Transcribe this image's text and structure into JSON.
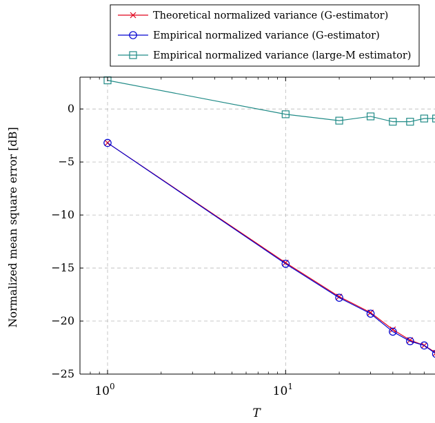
{
  "chart_data": {
    "type": "line",
    "xlabel": "T",
    "ylabel": "Normalized mean square error [dB]",
    "xscale": "log",
    "xlim": [
      0.7,
      69
    ],
    "ylim": [
      -25,
      3
    ],
    "x_ticks": [
      {
        "value": 1,
        "base": "10",
        "exp": "0"
      },
      {
        "value": 10,
        "base": "10",
        "exp": "1"
      }
    ],
    "y_ticks": [
      {
        "value": 0,
        "label": "0"
      },
      {
        "value": -5,
        "label": "−5"
      },
      {
        "value": -10,
        "label": "−10"
      },
      {
        "value": -15,
        "label": "−15"
      },
      {
        "value": -20,
        "label": "−20"
      },
      {
        "value": -25,
        "label": "−25"
      }
    ],
    "grid": true,
    "legend_position": "top-right",
    "series": [
      {
        "name": "Theoretical normalized variance (G-estimator)",
        "color": "#e0001a",
        "marker": "x",
        "x": [
          1,
          10,
          20,
          30,
          40,
          50,
          60,
          70,
          80
        ],
        "y": [
          -3.2,
          -14.5,
          -17.7,
          -19.2,
          -20.8,
          -21.8,
          -22.3,
          -23.0,
          -23.6
        ]
      },
      {
        "name": "Empirical normalized variance (G-estimator)",
        "color": "#0000d0",
        "marker": "circle",
        "x": [
          1,
          10,
          20,
          30,
          40,
          50,
          60,
          70,
          80
        ],
        "y": [
          -3.2,
          -14.6,
          -17.8,
          -19.3,
          -21.0,
          -21.9,
          -22.3,
          -23.1,
          -23.8
        ]
      },
      {
        "name": "Empirical normalized variance (large-M estimator)",
        "color": "#1f8a86",
        "marker": "square",
        "x": [
          1,
          10,
          20,
          30,
          40,
          50,
          60,
          70,
          80
        ],
        "y": [
          2.7,
          -0.5,
          -1.1,
          -0.7,
          -1.2,
          -1.2,
          -0.9,
          -0.9,
          -1.0
        ]
      }
    ]
  }
}
